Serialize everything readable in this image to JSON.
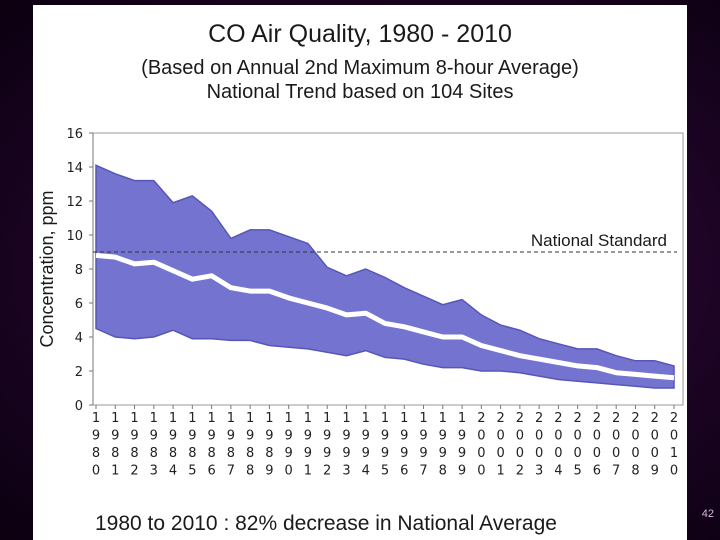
{
  "slide": {
    "page_number": "42",
    "footnote": "1980 to 2010 :  82% decrease in National Average"
  },
  "colors": {
    "band": "#7474d0",
    "band_edge": "#5656b8",
    "median": "#ffffff",
    "standard": "#333333",
    "background": "#ffffff"
  },
  "chart_data": {
    "type": "area",
    "title": "CO Air Quality, 1980 - 2010",
    "subtitle": [
      "(Based on Annual 2nd Maximum 8-hour Average)",
      "National Trend based on 104 Sites"
    ],
    "ylabel": "Concentration, ppm",
    "xlabel": "",
    "ylim": [
      0,
      16
    ],
    "yticks": [
      0,
      2,
      4,
      6,
      8,
      10,
      12,
      14,
      16
    ],
    "x": [
      1980,
      1981,
      1982,
      1983,
      1984,
      1985,
      1986,
      1987,
      1988,
      1989,
      1990,
      1991,
      1992,
      1993,
      1994,
      1995,
      1996,
      1997,
      1998,
      1999,
      2000,
      2001,
      2002,
      2003,
      2004,
      2005,
      2006,
      2007,
      2008,
      2009,
      2010
    ],
    "x_tick_labels": [
      "1980",
      "1981",
      "1982",
      "1983",
      "1984",
      "1985",
      "1986",
      "1987",
      "1988",
      "1989",
      "1990",
      "1991",
      "1992",
      "1993",
      "1994",
      "1995",
      "1996",
      "1997",
      "1998",
      "1999",
      "2000",
      "2001",
      "2002",
      "2003",
      "2004",
      "2005",
      "2006",
      "2007",
      "2008",
      "2009",
      "2010"
    ],
    "series": [
      {
        "values": [
          14.1,
          13.6,
          13.2,
          13.2,
          11.9,
          12.3,
          11.4,
          9.8,
          10.3,
          10.3,
          9.9,
          9.5,
          8.1,
          7.6,
          8.0,
          7.5,
          6.9,
          6.4,
          5.9,
          6.2,
          5.3,
          4.7,
          4.4,
          3.9,
          3.6,
          3.3,
          3.3,
          2.9,
          2.6,
          2.6,
          2.3
        ]
      },
      {
        "values": [
          8.8,
          8.7,
          8.3,
          8.4,
          7.9,
          7.4,
          7.6,
          6.9,
          6.7,
          6.7,
          6.3,
          6.0,
          5.7,
          5.3,
          5.4,
          4.8,
          4.6,
          4.3,
          4.0,
          4.0,
          3.5,
          3.2,
          2.9,
          2.7,
          2.5,
          2.3,
          2.2,
          1.9,
          1.8,
          1.7,
          1.6
        ]
      },
      {
        "values": [
          4.5,
          4.0,
          3.9,
          4.0,
          4.4,
          3.9,
          3.9,
          3.8,
          3.8,
          3.5,
          3.4,
          3.3,
          3.1,
          2.9,
          3.2,
          2.8,
          2.7,
          2.4,
          2.2,
          2.2,
          2.0,
          2.0,
          1.9,
          1.7,
          1.5,
          1.4,
          1.3,
          1.2,
          1.1,
          1.0,
          1.0
        ]
      }
    ],
    "reference_line": {
      "value": 9,
      "label": "National Standard",
      "style": "dashed"
    },
    "grid": false,
    "legend": "none"
  }
}
